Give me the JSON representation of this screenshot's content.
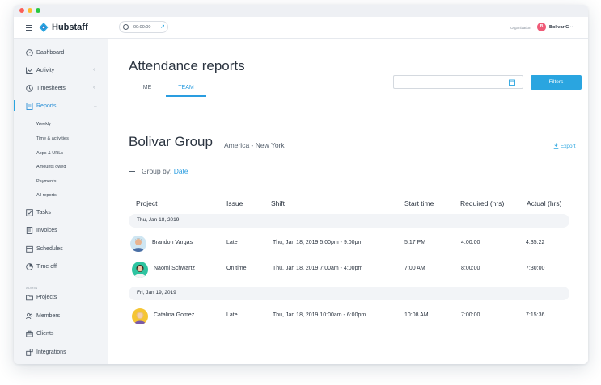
{
  "app": {
    "brand": "Hubstaff",
    "timer": "00:00:00",
    "org_label": "Organization",
    "org_initial": "B",
    "org_name": "Bolivar G"
  },
  "colors": {
    "accent": "#2aa5e0",
    "sidebar_bg": "#f2f4f7",
    "avatar_pink": "#ef5b78"
  },
  "sidebar": {
    "items": [
      {
        "label": "Dashboard",
        "icon": "dashboard-icon"
      },
      {
        "label": "Activity",
        "icon": "activity-icon"
      },
      {
        "label": "Timesheets",
        "icon": "clock-icon"
      },
      {
        "label": "Reports",
        "icon": "reports-icon"
      },
      {
        "label": "Tasks",
        "icon": "checkbox-icon"
      },
      {
        "label": "Invoices",
        "icon": "invoice-icon"
      },
      {
        "label": "Schedules",
        "icon": "calendar-icon"
      },
      {
        "label": "Time off",
        "icon": "time-off-icon"
      },
      {
        "label": "Projects",
        "icon": "folder-icon"
      },
      {
        "label": "Members",
        "icon": "members-icon"
      },
      {
        "label": "Clients",
        "icon": "briefcase-icon"
      },
      {
        "label": "Integrations",
        "icon": "integrations-icon"
      }
    ],
    "report_subitems": [
      "Weekly",
      "Time & activities",
      "Apps & URLs",
      "Amounts owed",
      "Payments",
      "All reports"
    ],
    "admin_label": "ADMIN"
  },
  "main": {
    "title": "Attendance reports",
    "tabs": [
      "ME",
      "TEAM"
    ],
    "filters_label": "Filters",
    "group_name": "Bolivar Group",
    "timezone": "America - New York",
    "export_label": "Export",
    "groupby_label": "Group by:",
    "groupby_value": "Date",
    "columns": [
      "Project",
      "Issue",
      "Shift",
      "Start time",
      "Required (hrs)",
      "Actual (hrs)"
    ],
    "groups": [
      {
        "date": "Thu, Jan 18, 2019",
        "rows": [
          {
            "name": "Brandon Vargas",
            "issue": "Late",
            "shift": "Thu, Jan 18, 2019 5:00pm - 9:00pm",
            "start": "5:17 PM",
            "required": "4:00:00",
            "actual": "4:35:22"
          },
          {
            "name": "Naomi Schwartz",
            "issue": "On time",
            "shift": "Thu, Jan 18, 2019 7:00am - 4:00pm",
            "start": "7:00 AM",
            "required": "8:00:00",
            "actual": "7:30:00"
          }
        ]
      },
      {
        "date": "Fri, Jan 19, 2019",
        "rows": [
          {
            "name": "Catalina Gomez",
            "issue": "Late",
            "shift": "Thu, Jan 18, 2019 10:00am - 6:00pm",
            "start": "10:08 AM",
            "required": "7:00:00",
            "actual": "7:15:36"
          }
        ]
      }
    ]
  }
}
